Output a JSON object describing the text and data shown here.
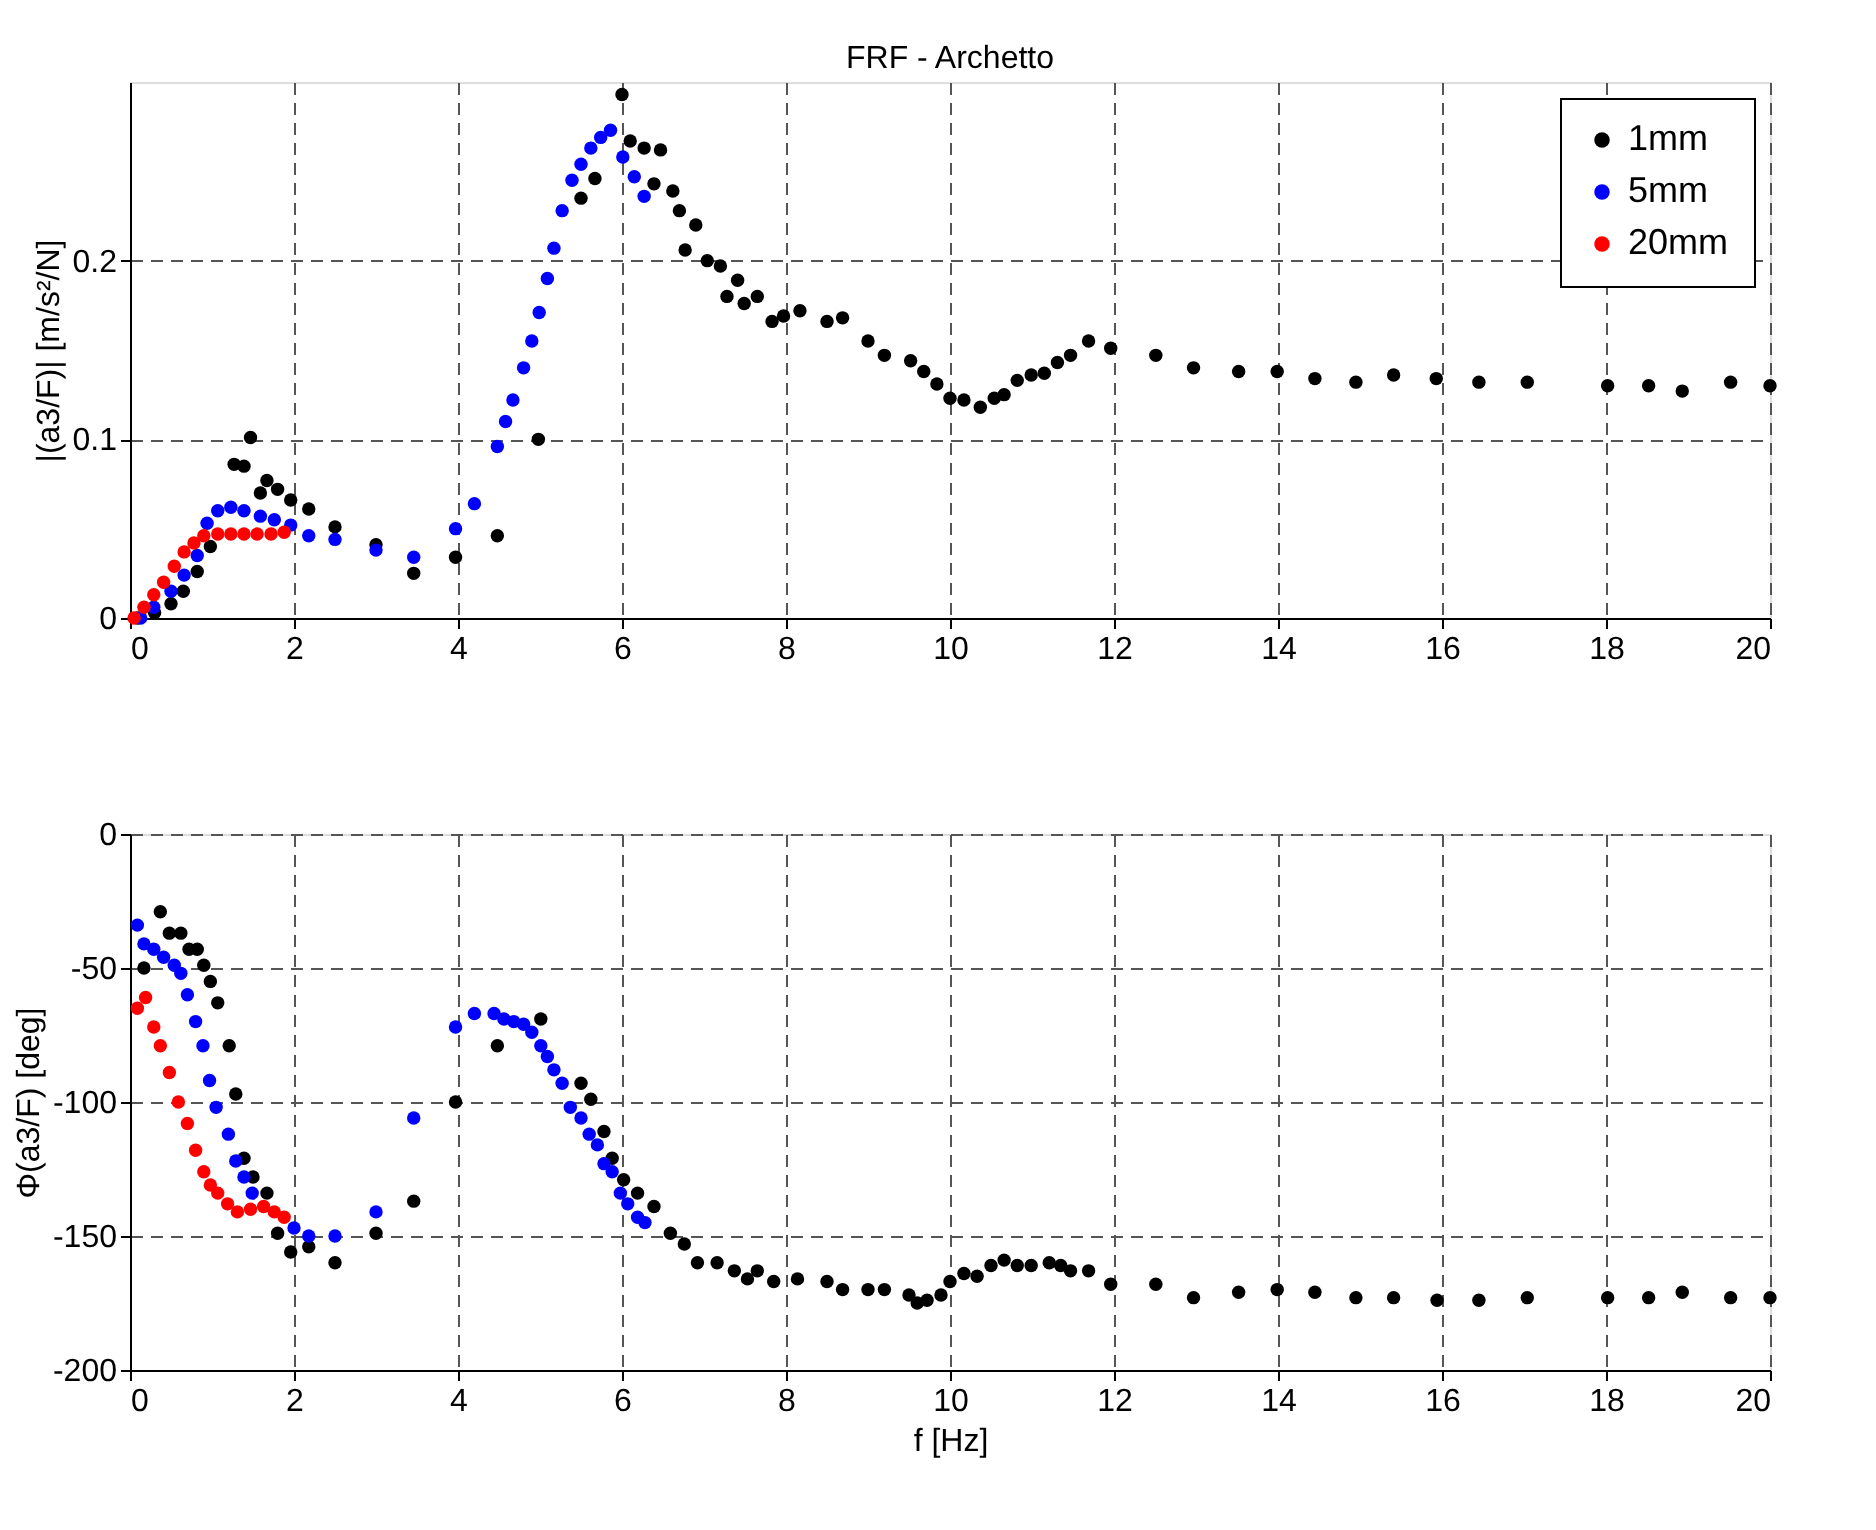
{
  "chart_data": [
    {
      "type": "scatter",
      "title": "FRF - Archetto",
      "ylabel": "|(a3/F)| [m/s²/N]",
      "xlim": [
        0,
        20
      ],
      "xticks": [
        0,
        2,
        4,
        6,
        8,
        10,
        12,
        14,
        16,
        18,
        20
      ],
      "ylim": [
        0,
        0.3
      ],
      "yticks": [
        0,
        0.1,
        0.2
      ],
      "grid": true,
      "legend": "top right",
      "marker": "circle",
      "series": [
        {
          "name": "1mm",
          "color": "#000000",
          "x": [
            0.09,
            0.3,
            0.5,
            0.65,
            0.82,
            0.98,
            1.27,
            1.39,
            1.47,
            1.59,
            1.67,
            1.8,
            1.96,
            2.18,
            2.5,
            3.0,
            3.46,
            3.97,
            4.48,
            4.98,
            5.5,
            5.67,
            6.0,
            6.1,
            6.27,
            6.39,
            6.47,
            6.62,
            6.7,
            6.77,
            6.9,
            7.04,
            7.2,
            7.28,
            7.41,
            7.49,
            7.65,
            7.83,
            7.97,
            8.17,
            8.5,
            8.69,
            9.0,
            9.2,
            9.52,
            9.68,
            9.84,
            10.0,
            10.17,
            10.37,
            10.54,
            10.66,
            10.82,
            10.99,
            11.15,
            11.31,
            11.47,
            11.69,
            11.96,
            12.51,
            12.97,
            13.52,
            13.99,
            14.45,
            14.95,
            15.41,
            15.93,
            16.45,
            17.04,
            18.02,
            18.52,
            18.93,
            19.52,
            20.0
          ],
          "values": [
            0,
            0.003,
            0.008,
            0.015,
            0.026,
            0.04,
            0.086,
            0.085,
            0.101,
            0.07,
            0.077,
            0.072,
            0.066,
            0.061,
            0.051,
            0.041,
            0.025,
            0.034,
            0.046,
            0.1,
            0.235,
            0.246,
            0.293,
            0.267,
            0.263,
            0.243,
            0.262,
            0.239,
            0.228,
            0.206,
            0.22,
            0.2,
            0.197,
            0.18,
            0.189,
            0.176,
            0.18,
            0.166,
            0.169,
            0.172,
            0.166,
            0.168,
            0.155,
            0.147,
            0.144,
            0.138,
            0.131,
            0.123,
            0.122,
            0.118,
            0.123,
            0.125,
            0.133,
            0.136,
            0.137,
            0.143,
            0.147,
            0.155,
            0.151,
            0.147,
            0.14,
            0.138,
            0.138,
            0.134,
            0.132,
            0.136,
            0.134,
            0.132,
            0.132,
            0.13,
            0.13,
            0.127,
            0.132,
            0.13
          ]
        },
        {
          "name": "5mm",
          "color": "#0000ff",
          "x": [
            0.13,
            0.29,
            0.5,
            0.66,
            0.82,
            0.94,
            1.07,
            1.23,
            1.39,
            1.59,
            1.76,
            1.96,
            2.18,
            2.5,
            3.0,
            3.46,
            3.97,
            4.2,
            4.48,
            4.58,
            4.67,
            4.8,
            4.9,
            4.99,
            5.09,
            5.17,
            5.27,
            5.39,
            5.5,
            5.62,
            5.74,
            5.86,
            6.01,
            6.15,
            6.27
          ],
          "values": [
            0,
            0.006,
            0.015,
            0.024,
            0.035,
            0.053,
            0.06,
            0.062,
            0.06,
            0.057,
            0.055,
            0.052,
            0.046,
            0.044,
            0.038,
            0.034,
            0.05,
            0.064,
            0.096,
            0.11,
            0.122,
            0.14,
            0.155,
            0.171,
            0.19,
            0.207,
            0.228,
            0.245,
            0.254,
            0.263,
            0.269,
            0.273,
            0.258,
            0.247,
            0.236
          ]
        },
        {
          "name": "20mm",
          "color": "#ff0000",
          "x": [
            0.05,
            0.17,
            0.29,
            0.41,
            0.54,
            0.66,
            0.78,
            0.9,
            1.07,
            1.23,
            1.39,
            1.55,
            1.72,
            1.88
          ],
          "values": [
            0,
            0.006,
            0.013,
            0.02,
            0.029,
            0.037,
            0.042,
            0.046,
            0.047,
            0.047,
            0.047,
            0.047,
            0.047,
            0.048
          ]
        }
      ]
    },
    {
      "type": "scatter",
      "xlabel": "f [Hz]",
      "ylabel": "Φ(a3/F) [deg]",
      "xlim": [
        0,
        20
      ],
      "xticks": [
        0,
        2,
        4,
        6,
        8,
        10,
        12,
        14,
        16,
        18,
        20
      ],
      "ylim": [
        -200,
        0
      ],
      "yticks": [
        -200,
        -150,
        -100,
        -50,
        0
      ],
      "grid": true,
      "marker": "circle",
      "series": [
        {
          "color": "#000000",
          "x": [
            0.17,
            0.37,
            0.48,
            0.62,
            0.72,
            0.82,
            0.9,
            0.98,
            1.07,
            1.21,
            1.29,
            1.39,
            1.5,
            1.67,
            1.8,
            1.96,
            2.18,
            2.5,
            3.0,
            3.46,
            3.97,
            4.48,
            5.01,
            5.5,
            5.62,
            5.78,
            5.88,
            6.02,
            6.19,
            6.39,
            6.59,
            6.76,
            6.92,
            7.16,
            7.37,
            7.53,
            7.65,
            7.85,
            8.14,
            8.5,
            8.69,
            9.0,
            9.2,
            9.5,
            9.6,
            9.72,
            9.89,
            10.0,
            10.17,
            10.33,
            10.5,
            10.66,
            10.82,
            10.99,
            11.21,
            11.35,
            11.47,
            11.69,
            11.96,
            12.51,
            12.97,
            13.52,
            13.99,
            14.45,
            14.95,
            15.41,
            15.94,
            16.45,
            17.04,
            18.02,
            18.52,
            18.93,
            19.52,
            20.0
          ],
          "values": [
            -50,
            -29,
            -37,
            -37,
            -43,
            -43,
            -49,
            -55,
            -63,
            -79,
            -97,
            -121,
            -128,
            -134,
            -149,
            -156,
            -154,
            -160,
            -149,
            -137,
            -100,
            -79,
            -69,
            -93,
            -99,
            -111,
            -121,
            -129,
            -134,
            -139,
            -149,
            -153,
            -160,
            -160,
            -163,
            -166,
            -163,
            -167,
            -166,
            -167,
            -170,
            -170,
            -170,
            -172,
            -175,
            -174,
            -172,
            -167,
            -164,
            -165,
            -161,
            -159,
            -161,
            -161,
            -160,
            -161,
            -163,
            -163,
            -168,
            -168,
            -173,
            -171,
            -170,
            -171,
            -173,
            -173,
            -174,
            -174,
            -173,
            -173,
            -173,
            -171,
            -173,
            -173
          ]
        },
        {
          "color": "#0000ff",
          "x": [
            0.09,
            0.17,
            0.29,
            0.41,
            0.54,
            0.62,
            0.7,
            0.8,
            0.89,
            0.97,
            1.05,
            1.2,
            1.29,
            1.39,
            1.49,
            1.63,
            1.8,
            2.0,
            2.18,
            2.5,
            3.0,
            3.46,
            3.97,
            4.2,
            4.44,
            4.56,
            4.68,
            4.8,
            4.9,
            5.01,
            5.09,
            5.17,
            5.27,
            5.37,
            5.5,
            5.6,
            5.7,
            5.78,
            5.88,
            5.98,
            6.07,
            6.19,
            6.28
          ],
          "values": [
            -34,
            -41,
            -43,
            -46,
            -49,
            -52,
            -60,
            -70,
            -79,
            -92,
            -102,
            -112,
            -122,
            -128,
            -134,
            null,
            null,
            -147,
            -150,
            -150,
            -141,
            -106,
            -72,
            -67,
            -67,
            -69,
            -70,
            -71,
            -74,
            -79,
            -83,
            -88,
            -93,
            -102,
            -106,
            -112,
            -116,
            -123,
            -126,
            -134,
            -138,
            -143,
            -145
          ]
        },
        {
          "color": "#ff0000",
          "x": [
            0.09,
            0.19,
            0.29,
            0.37,
            0.48,
            0.59,
            0.7,
            0.8,
            0.9,
            0.98,
            1.07,
            1.19,
            1.31,
            1.47,
            1.63,
            1.76,
            1.88
          ],
          "values": [
            -65,
            -61,
            -72,
            -79,
            -89,
            -100,
            -108,
            -118,
            -126,
            -131,
            -134,
            -138,
            -141,
            -140,
            -139,
            -141,
            -143
          ]
        }
      ]
    }
  ]
}
